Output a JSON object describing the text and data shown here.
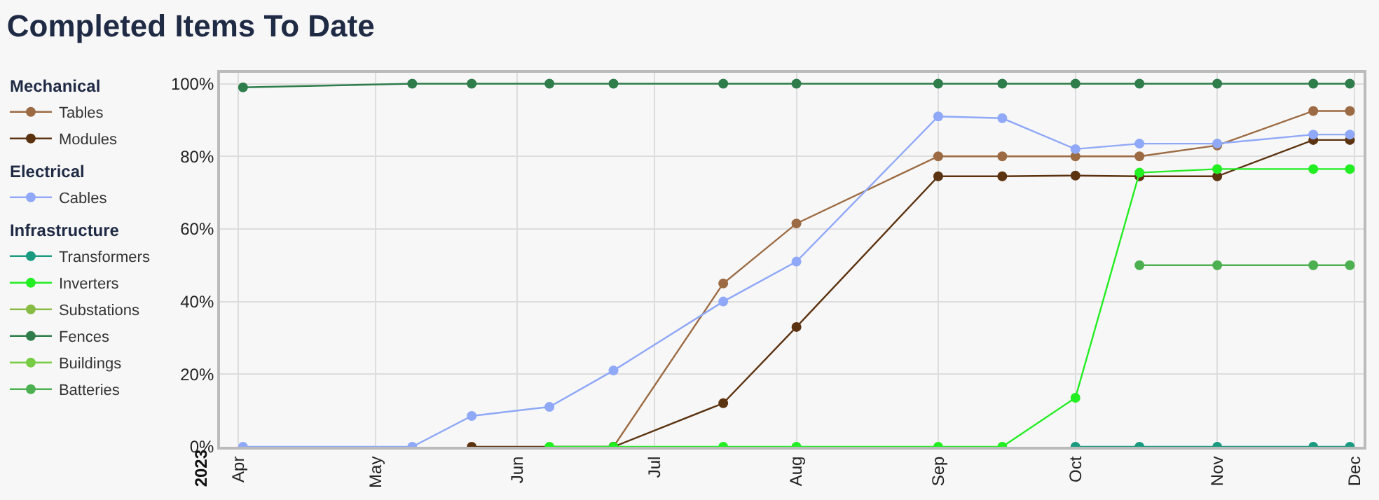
{
  "chart_data": {
    "type": "line",
    "title": "Completed Items To Date",
    "xlim": [
      "2023-03-28",
      "2023-12-03"
    ],
    "xticks": [
      {
        "value": "2023-04-01",
        "label": "Apr"
      },
      {
        "value": "2023-05-01",
        "label": "May"
      },
      {
        "value": "2023-06-01",
        "label": "Jun"
      },
      {
        "value": "2023-07-01",
        "label": "Jul"
      },
      {
        "value": "2023-08-01",
        "label": "Aug"
      },
      {
        "value": "2023-09-01",
        "label": "Sep"
      },
      {
        "value": "2023-10-01",
        "label": "Oct"
      },
      {
        "value": "2023-11-01",
        "label": "Nov"
      },
      {
        "value": "2023-12-01",
        "label": "Dec"
      }
    ],
    "ylim": [
      0,
      103
    ],
    "yticks": [
      {
        "value": 0,
        "label": "0%"
      },
      {
        "value": 20,
        "label": "20%"
      },
      {
        "value": 40,
        "label": "40%"
      },
      {
        "value": 60,
        "label": "60%"
      },
      {
        "value": 80,
        "label": "80%"
      },
      {
        "value": 100,
        "label": "100%"
      }
    ],
    "annotations": [
      "2023",
      "Mechanical",
      "Electrical",
      "Infrastructure"
    ],
    "grid": true,
    "legend": "left",
    "marker": "circle",
    "line_style": "solid",
    "series": [
      {
        "name": "Tables",
        "color": "#9c6b43",
        "x": [
          "2023-06-22",
          "2023-07-16",
          "2023-08-01",
          "2023-09-01",
          "2023-09-15",
          "2023-10-01",
          "2023-10-15",
          "2023-11-01",
          "2023-11-22",
          "2023-11-30"
        ],
        "values": [
          0,
          45,
          61.5,
          80,
          80,
          80,
          80,
          83,
          92.5,
          92.5
        ]
      },
      {
        "name": "Modules",
        "color": "#5c3310",
        "x": [
          "2023-05-22",
          "2023-06-22",
          "2023-07-16",
          "2023-08-01",
          "2023-09-01",
          "2023-09-15",
          "2023-10-01",
          "2023-10-15",
          "2023-11-01",
          "2023-11-22",
          "2023-11-30"
        ],
        "values": [
          0,
          0,
          12,
          33,
          74.5,
          74.5,
          74.7,
          74.5,
          74.5,
          84.5,
          84.5
        ]
      },
      {
        "name": "Cables",
        "color": "#8fa8f8",
        "x": [
          "2023-04-02",
          "2023-05-09",
          "2023-05-22",
          "2023-06-08",
          "2023-06-22",
          "2023-07-16",
          "2023-08-01",
          "2023-09-01",
          "2023-09-15",
          "2023-10-01",
          "2023-10-15",
          "2023-11-01",
          "2023-11-22",
          "2023-11-30"
        ],
        "values": [
          0,
          0,
          8.5,
          11,
          21,
          40,
          51,
          91,
          90.5,
          82,
          83.5,
          83.5,
          86,
          86
        ]
      },
      {
        "name": "Transformers",
        "color": "#1a9a80",
        "x": [
          "2023-10-01",
          "2023-10-15",
          "2023-11-01",
          "2023-11-22",
          "2023-11-30"
        ],
        "values": [
          0,
          0,
          0,
          0,
          0
        ]
      },
      {
        "name": "Inverters",
        "color": "#22ee22",
        "x": [
          "2023-06-08",
          "2023-06-22",
          "2023-07-16",
          "2023-08-01",
          "2023-09-01",
          "2023-09-15",
          "2023-10-01",
          "2023-10-15",
          "2023-11-01",
          "2023-11-22",
          "2023-11-30"
        ],
        "values": [
          0,
          0,
          0,
          0,
          0,
          0,
          13.5,
          75.5,
          76.5,
          76.5,
          76.5
        ]
      },
      {
        "name": "Substations",
        "color": "#88bb44"
      },
      {
        "name": "Fences",
        "color": "#2e7d4a",
        "x": [
          "2023-04-02",
          "2023-05-09",
          "2023-05-22",
          "2023-06-08",
          "2023-06-22",
          "2023-07-16",
          "2023-08-01",
          "2023-09-01",
          "2023-09-15",
          "2023-10-01",
          "2023-10-15",
          "2023-11-01",
          "2023-11-22",
          "2023-11-30"
        ],
        "values": [
          99,
          100,
          100,
          100,
          100,
          100,
          100,
          100,
          100,
          100,
          100,
          100,
          100,
          100
        ]
      },
      {
        "name": "Buildings",
        "color": "#77cc44"
      },
      {
        "name": "Batteries",
        "color": "#4caf50",
        "x": [
          "2023-10-15",
          "2023-11-01",
          "2023-11-22",
          "2023-11-30"
        ],
        "values": [
          50,
          50,
          50,
          50
        ]
      }
    ]
  }
}
